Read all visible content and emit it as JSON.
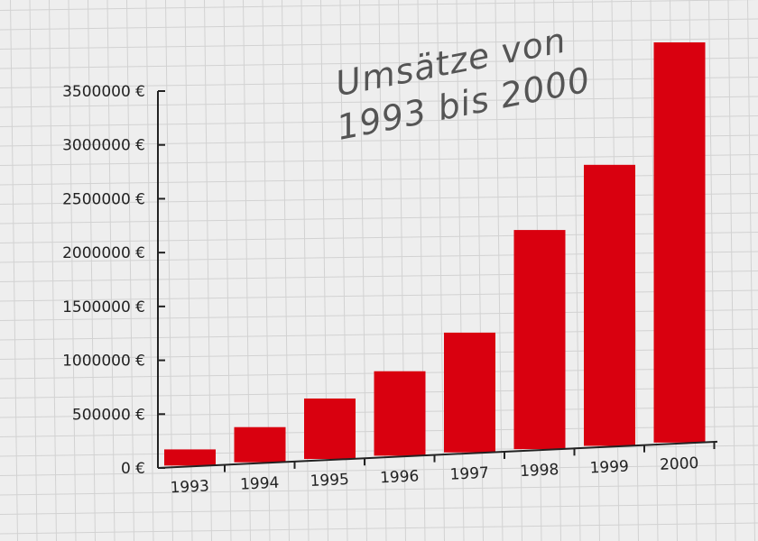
{
  "chart_data": {
    "type": "bar",
    "title": [
      "Umsätze von",
      "1993 bis 2000"
    ],
    "xlabel": "",
    "ylabel": "",
    "categories": [
      "1993",
      "1994",
      "1995",
      "1996",
      "1997",
      "1998",
      "1999",
      "2000"
    ],
    "values": [
      150000,
      320000,
      540000,
      740000,
      1030000,
      1850000,
      2330000,
      3260000
    ],
    "yticks": [
      "0 €",
      "500000 €",
      "1000000 €",
      "1500000 €",
      "2000000 €",
      "2500000 €",
      "3000000 €",
      "3500000 €"
    ],
    "ylim": [
      0,
      3500000
    ],
    "grid": true,
    "colors": {
      "bar": "#d9000f",
      "axis": "#222222",
      "title": "#555555",
      "grid": "#d2d2d2",
      "background": "#eeeeee"
    }
  }
}
